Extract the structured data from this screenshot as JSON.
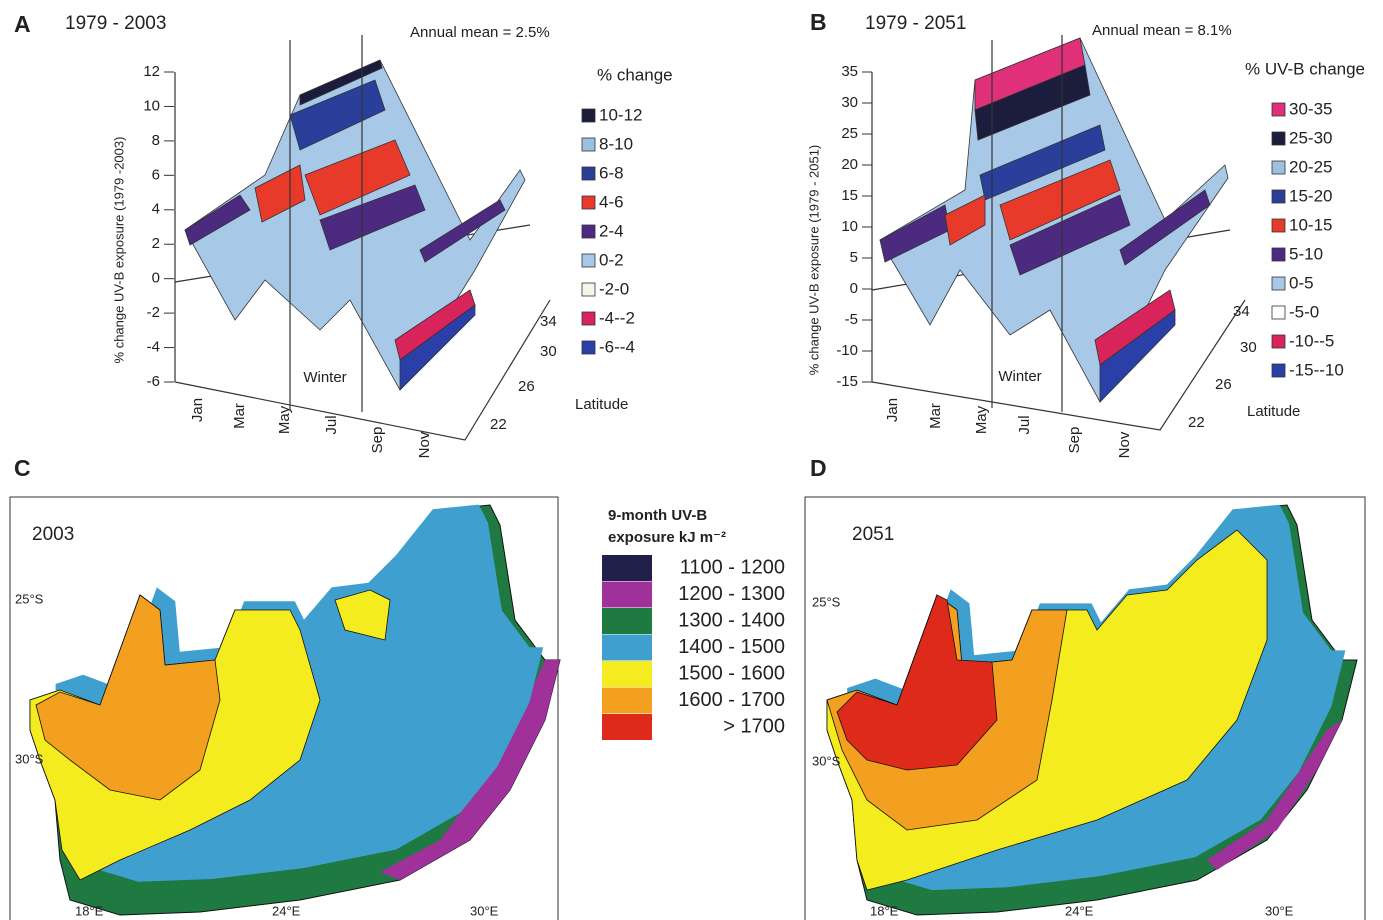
{
  "panels": [
    {
      "letter": "A",
      "period": "1979 - 2003",
      "annual_mean": "Annual mean = 2.5%",
      "y_axis_label": "% change UV-B exposure (1979 -2003)",
      "yticks": [
        "12",
        "10",
        "8",
        "6",
        "4",
        "2",
        "0",
        "-2",
        "-4",
        "-6"
      ],
      "months": [
        "Jan",
        "Mar",
        "May",
        "Jul",
        "Sep",
        "Nov"
      ],
      "season": "Winter",
      "latitudes": [
        "34",
        "30",
        "26",
        "22"
      ],
      "latitude_label": "Latitude",
      "legend_title": "% change",
      "legend": [
        {
          "label": "10-12",
          "color": "#1c1c3c"
        },
        {
          "label": "8-10",
          "color": "#9cc0e0"
        },
        {
          "label": "6-8",
          "color": "#2a3f9a"
        },
        {
          "label": "4-6",
          "color": "#e83a2a"
        },
        {
          "label": "2-4",
          "color": "#4b2a80"
        },
        {
          "label": "0-2",
          "color": "#a8c8e8"
        },
        {
          "label": "-2-0",
          "color": "#f5f5e8"
        },
        {
          "label": "-4--2",
          "color": "#d8245a"
        },
        {
          "label": "-6--4",
          "color": "#2a3fa8"
        }
      ]
    },
    {
      "letter": "B",
      "period": "1979 - 2051",
      "annual_mean": "Annual mean = 8.1%",
      "y_axis_label": "% change UV-B exposure (1979 - 2051)",
      "yticks": [
        "35",
        "30",
        "25",
        "20",
        "15",
        "10",
        "5",
        "0",
        "-5",
        "-10",
        "-15"
      ],
      "months": [
        "Jan",
        "Mar",
        "May",
        "Jul",
        "Sep",
        "Nov"
      ],
      "season": "Winter",
      "latitudes": [
        "34",
        "30",
        "26",
        "22"
      ],
      "latitude_label": "Latitude",
      "legend_title": "% UV-B change",
      "legend": [
        {
          "label": "30-35",
          "color": "#e0307a"
        },
        {
          "label": "25-30",
          "color": "#1c1c3c"
        },
        {
          "label": "20-25",
          "color": "#9cc0e0"
        },
        {
          "label": "15-20",
          "color": "#2a3f9a"
        },
        {
          "label": "10-15",
          "color": "#e83a2a"
        },
        {
          "label": "5-10",
          "color": "#4b2a80"
        },
        {
          "label": "0-5",
          "color": "#a8c8e8"
        },
        {
          "label": "-5-0",
          "color": "#ffffff"
        },
        {
          "label": "-10--5",
          "color": "#d8245a"
        },
        {
          "label": "-15--10",
          "color": "#2a3fa8"
        }
      ]
    }
  ],
  "maps": [
    {
      "letter": "C",
      "year": "2003",
      "latitudes": [
        "25°S",
        "30°S"
      ],
      "longitudes": [
        "18°E",
        "24°E",
        "30°E"
      ]
    },
    {
      "letter": "D",
      "year": "2051",
      "latitudes": [
        "25°S",
        "30°S"
      ],
      "longitudes": [
        "18°E",
        "24°E",
        "30°E"
      ]
    }
  ],
  "map_legend": {
    "title_lines": [
      "9-month UV-B",
      "exposure kJ m⁻²"
    ],
    "items": [
      {
        "label": "1100 - 1200",
        "color": "#20204a"
      },
      {
        "label": "1200 - 1300",
        "color": "#a0309a"
      },
      {
        "label": "1300 - 1400",
        "color": "#1e7a40"
      },
      {
        "label": "1400 - 1500",
        "color": "#3fa0d0"
      },
      {
        "label": "1500 - 1600",
        "color": "#f5ec20"
      },
      {
        "label": "1600 - 1700",
        "color": "#f3a020"
      },
      {
        "label": "> 1700",
        "color": "#dd2a1a"
      }
    ]
  }
}
